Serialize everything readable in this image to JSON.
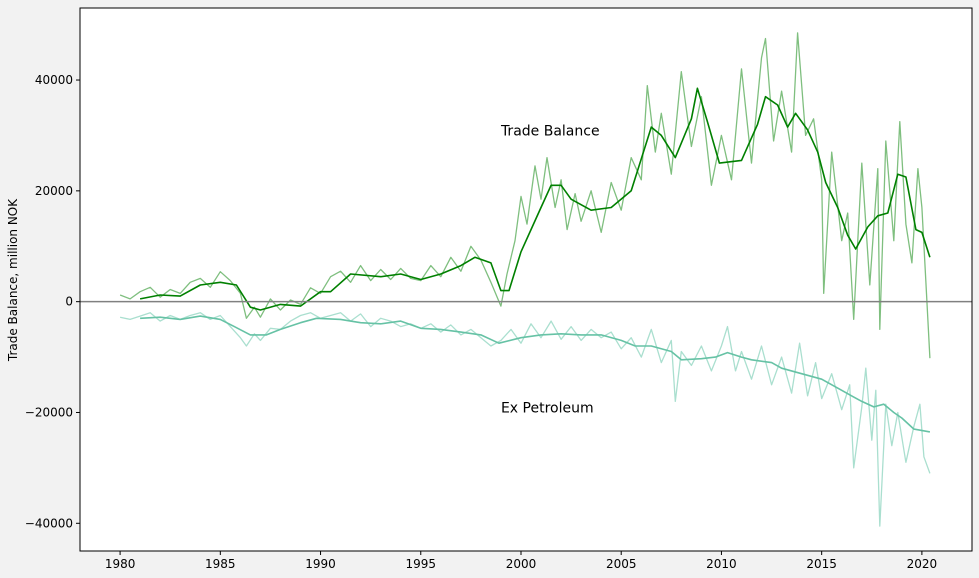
{
  "chart_data": {
    "type": "line",
    "title": "",
    "xlabel": "",
    "ylabel": "Trade Balance, million NOK",
    "xlim": [
      1978,
      2022.5
    ],
    "ylim": [
      -45000,
      53000
    ],
    "xticks": [
      1980,
      1985,
      1990,
      1995,
      2000,
      2005,
      2010,
      2015,
      2020
    ],
    "xtick_labels": [
      "1980",
      "1985",
      "1990",
      "1995",
      "2000",
      "2005",
      "2010",
      "2015",
      "2020"
    ],
    "yticks": [
      -40000,
      -20000,
      0,
      20000,
      40000
    ],
    "ytick_labels": [
      "−40000",
      "−20000",
      "0",
      "20000",
      "40000"
    ],
    "grid": false,
    "legend": "none",
    "zero_line": {
      "y": 0,
      "color": "#808080"
    },
    "annotations": [
      {
        "text": "Trade Balance",
        "x": 1999,
        "y": 30000
      },
      {
        "text": "Ex Petroleum",
        "x": 1999,
        "y": -20000
      }
    ],
    "series": [
      {
        "role": "monthly",
        "color": "#7fbf7f",
        "points": [
          [
            1980.0,
            1200
          ],
          [
            1980.5,
            500
          ],
          [
            1981.0,
            1800
          ],
          [
            1981.5,
            2600
          ],
          [
            1982.0,
            800
          ],
          [
            1982.5,
            2200
          ],
          [
            1983.0,
            1500
          ],
          [
            1983.5,
            3500
          ],
          [
            1984.0,
            4200
          ],
          [
            1984.5,
            2600
          ],
          [
            1985.0,
            5400
          ],
          [
            1985.5,
            3800
          ],
          [
            1986.0,
            1500
          ],
          [
            1986.3,
            -3000
          ],
          [
            1986.7,
            -1000
          ],
          [
            1987.0,
            -2800
          ],
          [
            1987.5,
            500
          ],
          [
            1988.0,
            -1500
          ],
          [
            1988.5,
            300
          ],
          [
            1989.0,
            -500
          ],
          [
            1989.5,
            2500
          ],
          [
            1990.0,
            1500
          ],
          [
            1990.5,
            4500
          ],
          [
            1991.0,
            5500
          ],
          [
            1991.5,
            3500
          ],
          [
            1992.0,
            6500
          ],
          [
            1992.5,
            3800
          ],
          [
            1993.0,
            5800
          ],
          [
            1993.5,
            4000
          ],
          [
            1994.0,
            6000
          ],
          [
            1994.5,
            4200
          ],
          [
            1995.0,
            3800
          ],
          [
            1995.5,
            6500
          ],
          [
            1996.0,
            4500
          ],
          [
            1996.5,
            8000
          ],
          [
            1997.0,
            5500
          ],
          [
            1997.5,
            10000
          ],
          [
            1998.0,
            7500
          ],
          [
            1998.5,
            3500
          ],
          [
            1999.0,
            -800
          ],
          [
            1999.3,
            5000
          ],
          [
            1999.7,
            11000
          ],
          [
            2000.0,
            19000
          ],
          [
            2000.3,
            14000
          ],
          [
            2000.7,
            24500
          ],
          [
            2001.0,
            18500
          ],
          [
            2001.3,
            26000
          ],
          [
            2001.7,
            17000
          ],
          [
            2002.0,
            22000
          ],
          [
            2002.3,
            13000
          ],
          [
            2002.7,
            19500
          ],
          [
            2003.0,
            14500
          ],
          [
            2003.5,
            20000
          ],
          [
            2004.0,
            12500
          ],
          [
            2004.5,
            21500
          ],
          [
            2005.0,
            16500
          ],
          [
            2005.5,
            26000
          ],
          [
            2006.0,
            22000
          ],
          [
            2006.3,
            39000
          ],
          [
            2006.7,
            27000
          ],
          [
            2007.0,
            34000
          ],
          [
            2007.5,
            23000
          ],
          [
            2008.0,
            41500
          ],
          [
            2008.5,
            28000
          ],
          [
            2009.0,
            37000
          ],
          [
            2009.5,
            21000
          ],
          [
            2010.0,
            30000
          ],
          [
            2010.5,
            22000
          ],
          [
            2011.0,
            42000
          ],
          [
            2011.5,
            25000
          ],
          [
            2012.0,
            44000
          ],
          [
            2012.2,
            47500
          ],
          [
            2012.6,
            29000
          ],
          [
            2013.0,
            38000
          ],
          [
            2013.5,
            27000
          ],
          [
            2013.8,
            48500
          ],
          [
            2014.2,
            30000
          ],
          [
            2014.6,
            33000
          ],
          [
            2015.0,
            22000
          ],
          [
            2015.1,
            1500
          ],
          [
            2015.5,
            27000
          ],
          [
            2016.0,
            11000
          ],
          [
            2016.3,
            16000
          ],
          [
            2016.6,
            -3200
          ],
          [
            2017.0,
            25000
          ],
          [
            2017.4,
            3000
          ],
          [
            2017.8,
            24000
          ],
          [
            2017.9,
            -5000
          ],
          [
            2018.2,
            29000
          ],
          [
            2018.6,
            11000
          ],
          [
            2018.9,
            32500
          ],
          [
            2019.2,
            14000
          ],
          [
            2019.5,
            7000
          ],
          [
            2019.8,
            24000
          ],
          [
            2020.0,
            17000
          ],
          [
            2020.2,
            3500
          ],
          [
            2020.4,
            -10200
          ]
        ]
      },
      {
        "role": "trend",
        "color": "#008000",
        "points": [
          [
            1981.0,
            500
          ],
          [
            1982.0,
            1200
          ],
          [
            1983.0,
            1000
          ],
          [
            1984.0,
            3000
          ],
          [
            1985.0,
            3500
          ],
          [
            1985.8,
            3000
          ],
          [
            1986.5,
            -1000
          ],
          [
            1987.0,
            -1500
          ],
          [
            1988.0,
            -500
          ],
          [
            1989.0,
            -800
          ],
          [
            1990.0,
            1800
          ],
          [
            1990.5,
            1800
          ],
          [
            1991.5,
            5000
          ],
          [
            1993.0,
            4500
          ],
          [
            1994.0,
            5000
          ],
          [
            1995.0,
            4000
          ],
          [
            1996.0,
            5000
          ],
          [
            1997.0,
            6500
          ],
          [
            1997.7,
            8000
          ],
          [
            1998.5,
            7000
          ],
          [
            1999.0,
            2000
          ],
          [
            1999.4,
            2000
          ],
          [
            2000.0,
            9000
          ],
          [
            2001.0,
            17000
          ],
          [
            2001.5,
            21000
          ],
          [
            2002.0,
            21000
          ],
          [
            2002.5,
            18500
          ],
          [
            2003.5,
            16500
          ],
          [
            2004.5,
            17000
          ],
          [
            2005.5,
            20000
          ],
          [
            2006.5,
            31500
          ],
          [
            2007.0,
            30000
          ],
          [
            2007.7,
            26000
          ],
          [
            2008.5,
            33000
          ],
          [
            2008.8,
            38500
          ],
          [
            2009.3,
            32500
          ],
          [
            2009.9,
            25000
          ],
          [
            2011.0,
            25500
          ],
          [
            2011.8,
            32000
          ],
          [
            2012.2,
            37000
          ],
          [
            2012.8,
            35500
          ],
          [
            2013.3,
            31500
          ],
          [
            2013.7,
            34000
          ],
          [
            2014.3,
            31000
          ],
          [
            2014.8,
            27000
          ],
          [
            2015.2,
            21500
          ],
          [
            2015.8,
            17000
          ],
          [
            2016.3,
            12000
          ],
          [
            2016.7,
            9500
          ],
          [
            2017.3,
            13500
          ],
          [
            2017.8,
            15500
          ],
          [
            2018.3,
            16000
          ],
          [
            2018.8,
            23000
          ],
          [
            2019.2,
            22500
          ],
          [
            2019.7,
            13000
          ],
          [
            2020.0,
            12500
          ],
          [
            2020.4,
            8000
          ]
        ]
      },
      {
        "role": "monthly",
        "color": "#aadfcf",
        "points": [
          [
            1980.0,
            -2800
          ],
          [
            1980.5,
            -3200
          ],
          [
            1981.0,
            -2600
          ],
          [
            1981.5,
            -2000
          ],
          [
            1982.0,
            -3500
          ],
          [
            1982.5,
            -2500
          ],
          [
            1983.0,
            -3200
          ],
          [
            1983.5,
            -2500
          ],
          [
            1984.0,
            -2000
          ],
          [
            1984.5,
            -3200
          ],
          [
            1985.0,
            -2500
          ],
          [
            1985.5,
            -4500
          ],
          [
            1986.0,
            -6500
          ],
          [
            1986.3,
            -8000
          ],
          [
            1986.7,
            -5800
          ],
          [
            1987.0,
            -7000
          ],
          [
            1987.5,
            -4800
          ],
          [
            1988.0,
            -5000
          ],
          [
            1988.5,
            -3500
          ],
          [
            1989.0,
            -2500
          ],
          [
            1989.5,
            -2000
          ],
          [
            1990.0,
            -3000
          ],
          [
            1990.5,
            -2500
          ],
          [
            1991.0,
            -2000
          ],
          [
            1991.5,
            -3500
          ],
          [
            1992.0,
            -2200
          ],
          [
            1992.5,
            -4500
          ],
          [
            1993.0,
            -3000
          ],
          [
            1993.5,
            -3500
          ],
          [
            1994.0,
            -4500
          ],
          [
            1994.5,
            -4000
          ],
          [
            1995.0,
            -4800
          ],
          [
            1995.5,
            -4000
          ],
          [
            1996.0,
            -5500
          ],
          [
            1996.5,
            -4200
          ],
          [
            1997.0,
            -6000
          ],
          [
            1997.5,
            -5000
          ],
          [
            1998.0,
            -6500
          ],
          [
            1998.5,
            -8000
          ],
          [
            1999.0,
            -7000
          ],
          [
            1999.5,
            -5000
          ],
          [
            2000.0,
            -7500
          ],
          [
            2000.5,
            -4000
          ],
          [
            2001.0,
            -6500
          ],
          [
            2001.5,
            -3500
          ],
          [
            2002.0,
            -6800
          ],
          [
            2002.5,
            -4500
          ],
          [
            2003.0,
            -7000
          ],
          [
            2003.5,
            -5000
          ],
          [
            2004.0,
            -6500
          ],
          [
            2004.5,
            -5500
          ],
          [
            2005.0,
            -8500
          ],
          [
            2005.5,
            -6500
          ],
          [
            2006.0,
            -10000
          ],
          [
            2006.5,
            -5000
          ],
          [
            2007.0,
            -11000
          ],
          [
            2007.5,
            -7000
          ],
          [
            2007.7,
            -18000
          ],
          [
            2008.0,
            -9000
          ],
          [
            2008.5,
            -11500
          ],
          [
            2009.0,
            -8000
          ],
          [
            2009.5,
            -12500
          ],
          [
            2010.0,
            -8000
          ],
          [
            2010.3,
            -4500
          ],
          [
            2010.7,
            -12500
          ],
          [
            2011.0,
            -9000
          ],
          [
            2011.5,
            -14000
          ],
          [
            2012.0,
            -8000
          ],
          [
            2012.5,
            -15000
          ],
          [
            2013.0,
            -10000
          ],
          [
            2013.5,
            -16500
          ],
          [
            2013.9,
            -7500
          ],
          [
            2014.3,
            -17000
          ],
          [
            2014.7,
            -11000
          ],
          [
            2015.0,
            -17500
          ],
          [
            2015.5,
            -13000
          ],
          [
            2016.0,
            -19500
          ],
          [
            2016.4,
            -15000
          ],
          [
            2016.6,
            -30000
          ],
          [
            2017.0,
            -19000
          ],
          [
            2017.2,
            -12000
          ],
          [
            2017.5,
            -25000
          ],
          [
            2017.7,
            -16000
          ],
          [
            2017.9,
            -40500
          ],
          [
            2018.2,
            -18500
          ],
          [
            2018.5,
            -26000
          ],
          [
            2018.8,
            -20000
          ],
          [
            2019.2,
            -29000
          ],
          [
            2019.6,
            -22500
          ],
          [
            2019.9,
            -18500
          ],
          [
            2020.1,
            -28000
          ],
          [
            2020.4,
            -31000
          ]
        ]
      },
      {
        "role": "trend",
        "color": "#66c2a5",
        "points": [
          [
            1981.0,
            -3000
          ],
          [
            1982.0,
            -2800
          ],
          [
            1983.0,
            -3200
          ],
          [
            1984.0,
            -2600
          ],
          [
            1985.0,
            -3200
          ],
          [
            1985.7,
            -4500
          ],
          [
            1986.5,
            -6000
          ],
          [
            1987.3,
            -6000
          ],
          [
            1988.0,
            -5000
          ],
          [
            1989.0,
            -3800
          ],
          [
            1989.8,
            -3000
          ],
          [
            1991.0,
            -3200
          ],
          [
            1992.0,
            -3800
          ],
          [
            1993.0,
            -4000
          ],
          [
            1994.0,
            -3500
          ],
          [
            1995.0,
            -4800
          ],
          [
            1996.0,
            -5000
          ],
          [
            1997.0,
            -5500
          ],
          [
            1998.0,
            -6000
          ],
          [
            1998.9,
            -7500
          ],
          [
            2000.0,
            -6500
          ],
          [
            2001.0,
            -6000
          ],
          [
            2002.0,
            -5800
          ],
          [
            2003.0,
            -6000
          ],
          [
            2004.0,
            -6000
          ],
          [
            2005.0,
            -7000
          ],
          [
            2005.7,
            -8000
          ],
          [
            2006.5,
            -8000
          ],
          [
            2007.5,
            -9000
          ],
          [
            2008.0,
            -10500
          ],
          [
            2009.0,
            -10300
          ],
          [
            2009.7,
            -10000
          ],
          [
            2010.3,
            -9200
          ],
          [
            2011.0,
            -10000
          ],
          [
            2011.5,
            -10500
          ],
          [
            2012.5,
            -11000
          ],
          [
            2013.0,
            -12000
          ],
          [
            2014.0,
            -13000
          ],
          [
            2015.0,
            -14000
          ],
          [
            2016.0,
            -16000
          ],
          [
            2016.5,
            -17000
          ],
          [
            2017.0,
            -18000
          ],
          [
            2017.6,
            -19000
          ],
          [
            2018.1,
            -18500
          ],
          [
            2018.6,
            -20000
          ],
          [
            2019.0,
            -21000
          ],
          [
            2019.6,
            -23000
          ],
          [
            2020.4,
            -23500
          ]
        ]
      }
    ]
  }
}
